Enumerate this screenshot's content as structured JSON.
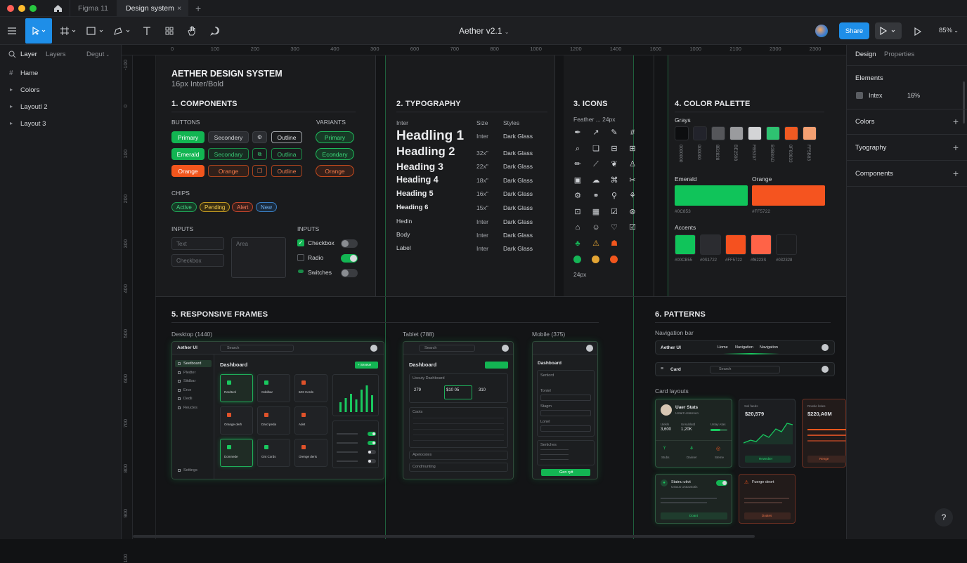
{
  "tabs": {
    "home_icon": "home-icon",
    "figma": "Figma 11",
    "design": "Design system",
    "close": "×",
    "new": "+"
  },
  "toolbar": {
    "title": "Aether v2.1",
    "share": "Share",
    "zoom": "85%"
  },
  "left_panel": {
    "tab_layer": "Layer",
    "tab_layers": "Layers",
    "page_select": "Degut",
    "items": [
      {
        "label": "Hame",
        "icon": "hash-icon"
      },
      {
        "label": "Colors"
      },
      {
        "label": "Layoutl 2"
      },
      {
        "label": "Layout 3"
      }
    ]
  },
  "right_panel": {
    "tab_design": "Design",
    "tab_properties": "Properties",
    "elements": "Elements",
    "intex": "Intex",
    "intex_value": "16%",
    "colors": "Colors",
    "typography": "Tyography",
    "components": "Components"
  },
  "ruler": {
    "top": [
      "0",
      "100",
      "200",
      "300",
      "400",
      "300",
      "600",
      "700",
      "800",
      "1000",
      "1200",
      "1400",
      "1600",
      "1000",
      "2100",
      "2300",
      "2300"
    ],
    "left": [
      "-100",
      "0",
      "100",
      "200",
      "300",
      "400",
      "500",
      "600",
      "700",
      "800",
      "900",
      "100"
    ]
  },
  "s1": {
    "title": "AETHER DESIGN SYSTEM",
    "subtitle": "16px Inter/Bold",
    "components": "1. COMPONENTS",
    "buttons": "BUTTONS",
    "variants": "VARIANTS",
    "row1": [
      "Primary",
      "Secondery",
      "Outline",
      "Primary"
    ],
    "row2": [
      "Emerald",
      "Secondary",
      "Outlina",
      "Econdary"
    ],
    "row3": [
      "Orange",
      "Orange",
      "Outline",
      "Orange"
    ],
    "chips": "CHIPS",
    "chip_labels": [
      "Active",
      "Pending",
      "Alert",
      "New"
    ],
    "inputs": "INPUTS",
    "inputs2": "INPUTS",
    "text_ph": "Text",
    "checkbox_ph": "Checkbox",
    "area_ph": "Area",
    "checkbox": "Checkbox",
    "radio": "Radio",
    "switches": "Switches"
  },
  "s2": {
    "title": "2. TYPOGRAPHY",
    "font": "Inter",
    "size": "Size",
    "styles": "Styles",
    "rows": [
      {
        "name": "Headling 1",
        "size": "Inter",
        "style": "Dark Glass"
      },
      {
        "name": "Headling 2",
        "size": "32x\"",
        "style": "Dark Glass"
      },
      {
        "name": "Heading 3",
        "size": "22x\"",
        "style": "Dark Glass"
      },
      {
        "name": "Heading 4",
        "size": "18x\"",
        "style": "Dark Glass"
      },
      {
        "name": "Heading 5",
        "size": "16x\"",
        "style": "Dark Glass"
      },
      {
        "name": "Heading 6",
        "size": "15x\"",
        "style": "Dark Glass"
      },
      {
        "name": "Hedin",
        "size": "Inter",
        "style": "Dark Glass"
      },
      {
        "name": "Body",
        "size": "Inter",
        "style": "Dark Glass"
      },
      {
        "name": "Label",
        "size": "Inter",
        "style": "Dark Glass"
      }
    ]
  },
  "s3": {
    "title": "3. ICONS",
    "sub": "Feather ... 24px",
    "foot": "24px",
    "icons": [
      "✒",
      "↗",
      "✎",
      "#",
      "⌕",
      "❏",
      "⊟",
      "⊞",
      "✏",
      "⟋",
      "❦",
      "♙",
      "▣",
      "☁",
      "⌘",
      "✂",
      "⚙",
      "⚭",
      "⚲",
      "⚘",
      "⊡",
      "▦",
      "☑",
      "⊛",
      "⌂",
      "☺",
      "♡",
      "☑",
      "♣",
      "⚠",
      "☗"
    ]
  },
  "s4": {
    "title": "4. COLOR PALETTE",
    "grays": "Grays",
    "gray_colors": [
      "#0d0e10",
      "#22232b",
      "#55565a",
      "#9a9b9e",
      "#d3d4d6",
      "#2ec271",
      "#f05a22",
      "#f3a072"
    ],
    "gray_labels": [
      "0000000",
      "000000",
      "8B2828",
      "BE2598",
      "FB5397",
      "B3B8AD",
      "0F83833",
      "FF5B83"
    ],
    "emerald": "Emerald",
    "orange": "Orange",
    "emerald_hex": "#0C853",
    "orange_hex": "#FF5722",
    "accents": "Accents",
    "accent_colors": [
      "#10c45a",
      "#2b2c30",
      "#f5511f",
      "#ff6347",
      "#1b1c1e"
    ],
    "accent_labels": [
      "#00CB55",
      "#0S1722",
      "#FF5722",
      "#f6223S",
      "#032328"
    ]
  },
  "s5": {
    "title": "5. RESPONSIVE FRAMES",
    "desktop": "Desktop (1440)",
    "tablet": "Tablet (788)",
    "mobile": "Mobile (375)",
    "app": "Aether UI",
    "dashboard": "Dashboard",
    "search": "Search",
    "add": "+ Sexeue",
    "nav": [
      "Seetboard",
      "Pledter",
      "Sitdbar",
      "Erce",
      "Dedli",
      "Reucles",
      "Settings"
    ],
    "settings": "Settings",
    "cards": [
      "Rardtenl",
      "Gdolbar",
      "6rt3 Cerds",
      "Orange derh",
      "Dard peda",
      "Adet",
      "Domnede",
      "Gnt Cords",
      "Orenge deris"
    ],
    "tab_title": "Usouty Dashboard",
    "tab_stats": [
      "279",
      "$10 05",
      "310"
    ],
    "tab_list": "Caots",
    "tab_more": "Apeloostes",
    "tab_more2": "Condmunting",
    "mob_sections": [
      "Sertiord",
      "Tontel",
      "Stagm",
      "Lonel",
      "Sertiches"
    ],
    "mob_btn": "Gen rytt"
  },
  "s6": {
    "title": "6. PATTERNS",
    "navbar": "Navigation bar",
    "brand": "Aether UI",
    "nav_items": [
      "Home",
      "Navigation",
      "Navigation"
    ],
    "card_label": "Card",
    "search": "Search",
    "card_layouts": "Card layouts",
    "user_stats": "Uaer Stats",
    "user_sub": "Ustart Ustarreen",
    "stat_vals": [
      "3,600",
      "1,20K"
    ],
    "stat_lbls": [
      "Ulekls",
      "Unsublatd",
      "Ustay Atas"
    ],
    "foot_btns": [
      "Stubs",
      "Dainrer",
      "Steme"
    ],
    "total": "$20,579",
    "total_lbl": "Swl faeds",
    "total_btn": "Rewedter",
    "big": "$220,A0M",
    "big_lbl": "Rossle loties",
    "big_btn": "Renge",
    "status": "Statnu uttvt",
    "status_sub": "Ustuus Ustuustotis",
    "status_btn": "Doant",
    "warn": "Fuerge deort",
    "warn_btn": "Doates",
    "help": "?"
  }
}
